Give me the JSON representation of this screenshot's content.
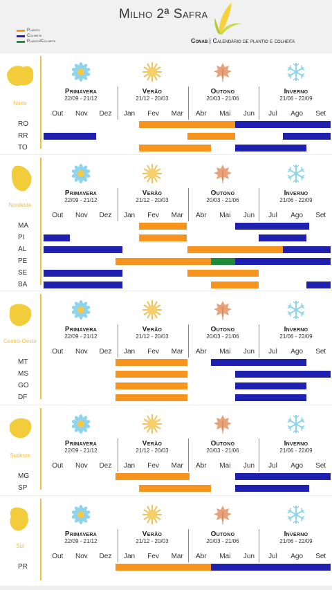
{
  "header": {
    "title": "Milho 2ª Safra",
    "source": "Conab",
    "subtitle": "Calendário de plantio e colheita"
  },
  "legend": [
    {
      "label": "Plantio",
      "color": "#f7941d"
    },
    {
      "label": "Colheita",
      "color": "#2020b0"
    },
    {
      "label": "Plantio/Colheita",
      "color": "#1e8c3a"
    }
  ],
  "seasons": [
    {
      "name": "Primavera",
      "dates": "22/09 - 21/12",
      "icon": "flower-icon"
    },
    {
      "name": "Verão",
      "dates": "21/12 - 20/03",
      "icon": "sun-icon"
    },
    {
      "name": "Outono",
      "dates": "20/03 - 21/06",
      "icon": "leaf-icon"
    },
    {
      "name": "Inverno",
      "dates": "21/06 - 22/09",
      "icon": "snowflake-icon"
    }
  ],
  "months": [
    "Out",
    "Nov",
    "Dez",
    "Jan",
    "Fev",
    "Mar",
    "Abr",
    "Mai",
    "Jun",
    "Jul",
    "Ago",
    "Set"
  ],
  "chart_data": {
    "type": "table",
    "units": "months (0 = start of Out, 12 = end of Set)",
    "regions": [
      {
        "name": "Norte",
        "rows": [
          {
            "state": "RO",
            "bars": [
              {
                "type": "Plantio",
                "start": 4.0,
                "end": 8.0
              },
              {
                "type": "Colheita",
                "start": 8.0,
                "end": 12.0
              }
            ]
          },
          {
            "state": "RR",
            "bars": [
              {
                "type": "Colheita",
                "start": 0.0,
                "end": 2.2
              },
              {
                "type": "Plantio",
                "start": 6.0,
                "end": 8.0
              },
              {
                "type": "Colheita",
                "start": 10.0,
                "end": 12.0
              }
            ]
          },
          {
            "state": "TO",
            "bars": [
              {
                "type": "Plantio",
                "start": 4.0,
                "end": 7.0
              },
              {
                "type": "Colheita",
                "start": 8.0,
                "end": 11.0
              }
            ]
          }
        ]
      },
      {
        "name": "Nordeste",
        "rows": [
          {
            "state": "MA",
            "bars": [
              {
                "type": "Plantio",
                "start": 4.0,
                "end": 6.0
              },
              {
                "type": "Colheita",
                "start": 8.0,
                "end": 11.1
              }
            ]
          },
          {
            "state": "PI",
            "bars": [
              {
                "type": "Colheita",
                "start": 0.0,
                "end": 1.1
              },
              {
                "type": "Plantio",
                "start": 4.0,
                "end": 6.0
              },
              {
                "type": "Colheita",
                "start": 9.0,
                "end": 11.0
              }
            ]
          },
          {
            "state": "AL",
            "bars": [
              {
                "type": "Colheita",
                "start": 0.0,
                "end": 3.3
              },
              {
                "type": "Plantio",
                "start": 6.0,
                "end": 10.0
              },
              {
                "type": "Colheita",
                "start": 10.0,
                "end": 12.0
              }
            ]
          },
          {
            "state": "PE",
            "bars": [
              {
                "type": "Plantio",
                "start": 3.0,
                "end": 7.0
              },
              {
                "type": "Plantio/Colheita",
                "start": 7.0,
                "end": 8.0
              },
              {
                "type": "Colheita",
                "start": 8.0,
                "end": 12.0
              }
            ]
          },
          {
            "state": "SE",
            "bars": [
              {
                "type": "Colheita",
                "start": 0.0,
                "end": 3.3
              },
              {
                "type": "Plantio",
                "start": 6.0,
                "end": 9.0
              }
            ]
          },
          {
            "state": "BA",
            "bars": [
              {
                "type": "Colheita",
                "start": 0.0,
                "end": 3.3
              },
              {
                "type": "Plantio",
                "start": 7.0,
                "end": 9.0
              },
              {
                "type": "Colheita",
                "start": 11.0,
                "end": 12.0
              }
            ]
          }
        ]
      },
      {
        "name": "Centro-Oeste",
        "rows": [
          {
            "state": "MT",
            "bars": [
              {
                "type": "Plantio",
                "start": 3.0,
                "end": 6.0
              },
              {
                "type": "Colheita",
                "start": 7.0,
                "end": 11.0
              }
            ]
          },
          {
            "state": "MS",
            "bars": [
              {
                "type": "Plantio",
                "start": 3.0,
                "end": 6.0
              },
              {
                "type": "Colheita",
                "start": 8.0,
                "end": 12.0
              }
            ]
          },
          {
            "state": "GO",
            "bars": [
              {
                "type": "Plantio",
                "start": 3.0,
                "end": 6.0
              },
              {
                "type": "Colheita",
                "start": 8.0,
                "end": 11.0
              }
            ]
          },
          {
            "state": "DF",
            "bars": [
              {
                "type": "Plantio",
                "start": 3.0,
                "end": 6.0
              },
              {
                "type": "Colheita",
                "start": 8.0,
                "end": 11.0
              }
            ]
          }
        ]
      },
      {
        "name": "Sudeste",
        "rows": [
          {
            "state": "MG",
            "bars": [
              {
                "type": "Plantio",
                "start": 3.0,
                "end": 6.1
              },
              {
                "type": "Colheita",
                "start": 8.0,
                "end": 12.0
              }
            ]
          },
          {
            "state": "SP",
            "bars": [
              {
                "type": "Plantio",
                "start": 4.0,
                "end": 7.0
              },
              {
                "type": "Colheita",
                "start": 8.0,
                "end": 11.1
              }
            ]
          }
        ]
      },
      {
        "name": "Sul",
        "rows": [
          {
            "state": "PR",
            "bars": [
              {
                "type": "Plantio",
                "start": 3.0,
                "end": 7.0
              },
              {
                "type": "Colheita",
                "start": 7.0,
                "end": 12.0
              }
            ]
          }
        ]
      }
    ]
  }
}
